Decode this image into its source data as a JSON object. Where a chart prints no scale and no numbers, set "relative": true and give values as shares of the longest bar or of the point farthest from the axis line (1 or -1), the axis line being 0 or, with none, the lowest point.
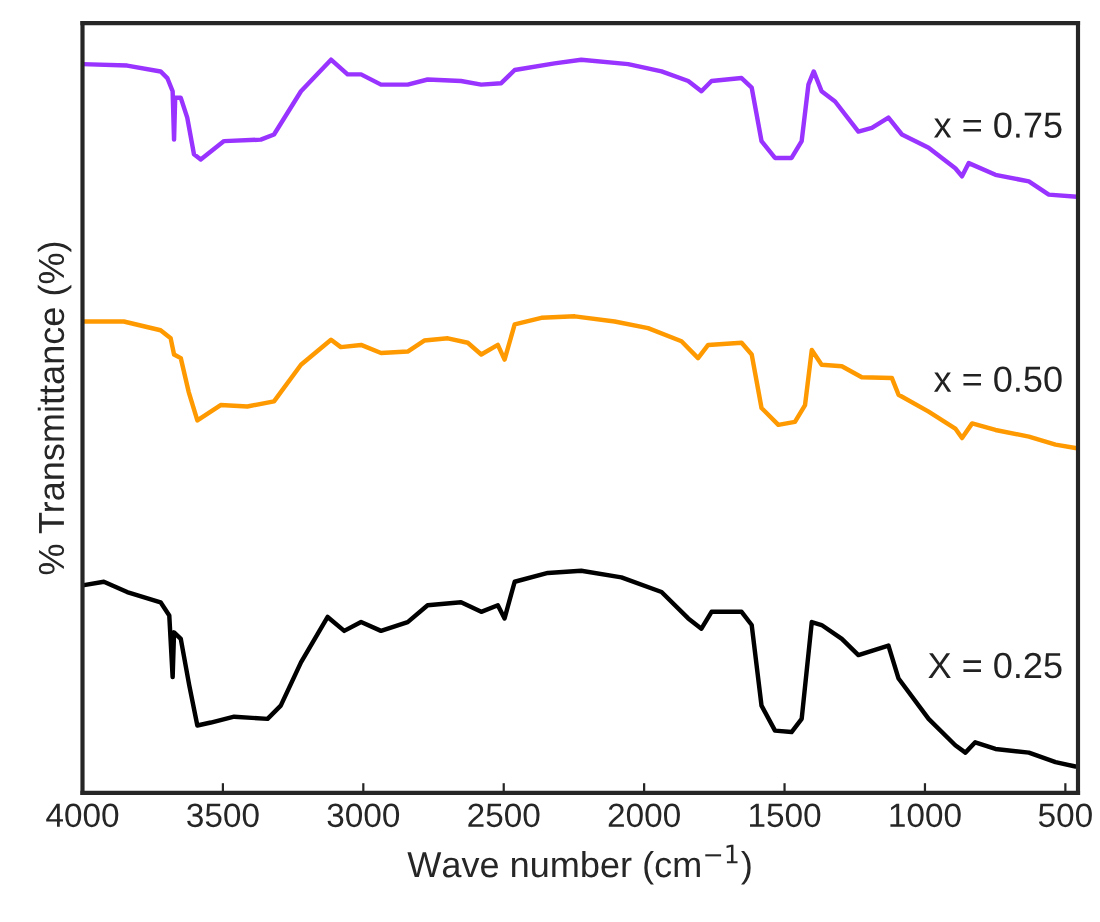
{
  "chart_data": {
    "type": "line",
    "relative": true,
    "xlabel": "Wave number (cm$^{−1}$)",
    "ylabel": "% Transmittance (%)",
    "xlim": [
      4000,
      455
    ],
    "xticks": [
      4000,
      3500,
      3000,
      2500,
      2000,
      1500,
      1000,
      500
    ],
    "grid": false,
    "legend": false,
    "tick_labels": "x",
    "series": [
      {
        "name": "x = 0.75",
        "color": "#9933ff",
        "x": [
          4000,
          3841,
          3722,
          3698,
          3679,
          3674,
          3670,
          3650,
          3627,
          3603,
          3579,
          3496,
          3365,
          3318,
          3222,
          3115,
          3056,
          3008,
          2937,
          2842,
          2771,
          2652,
          2580,
          2509,
          2461,
          2319,
          2224,
          2057,
          1938,
          1843,
          1796,
          1760,
          1653,
          1617,
          1582,
          1534,
          1475,
          1439,
          1415,
          1396,
          1368,
          1320,
          1237,
          1189,
          1130,
          1082,
          987,
          892,
          868,
          844,
          749,
          630,
          559,
          459
        ],
        "values": [
          0.994,
          0.992,
          0.984,
          0.975,
          0.957,
          0.891,
          0.948,
          0.948,
          0.921,
          0.871,
          0.864,
          0.889,
          0.891,
          0.898,
          0.957,
          1,
          0.98,
          0.98,
          0.966,
          0.966,
          0.973,
          0.971,
          0.966,
          0.968,
          0.986,
          0.995,
          1,
          0.994,
          0.984,
          0.971,
          0.957,
          0.971,
          0.975,
          0.962,
          0.889,
          0.866,
          0.866,
          0.889,
          0.966,
          0.984,
          0.957,
          0.943,
          0.902,
          0.907,
          0.921,
          0.898,
          0.88,
          0.852,
          0.841,
          0.859,
          0.843,
          0.834,
          0.816,
          0.813
        ]
      },
      {
        "name": "x = 0.50",
        "color": "#ff9900",
        "x": [
          4000,
          3853,
          3722,
          3686,
          3674,
          3650,
          3622,
          3591,
          3508,
          3413,
          3318,
          3222,
          3115,
          3080,
          3008,
          2937,
          2842,
          2783,
          2699,
          2628,
          2580,
          2521,
          2497,
          2461,
          2366,
          2247,
          2105,
          1986,
          1867,
          1808,
          1772,
          1653,
          1617,
          1582,
          1522,
          1463,
          1427,
          1403,
          1368,
          1296,
          1225,
          1118,
          1094,
          987,
          892,
          868,
          832,
          749,
          630,
          535,
          459
        ],
        "values": [
          0.643,
          0.643,
          0.631,
          0.62,
          0.598,
          0.593,
          0.547,
          0.508,
          0.529,
          0.527,
          0.534,
          0.584,
          0.618,
          0.608,
          0.611,
          0.6,
          0.602,
          0.617,
          0.62,
          0.614,
          0.598,
          0.611,
          0.591,
          0.639,
          0.648,
          0.65,
          0.643,
          0.634,
          0.616,
          0.593,
          0.611,
          0.614,
          0.598,
          0.525,
          0.502,
          0.506,
          0.529,
          0.604,
          0.584,
          0.582,
          0.567,
          0.566,
          0.543,
          0.52,
          0.497,
          0.484,
          0.504,
          0.495,
          0.486,
          0.475,
          0.47
        ]
      },
      {
        "name": "X = 0.25",
        "color": "#000000",
        "x": [
          4000,
          3924,
          3841,
          3722,
          3691,
          3679,
          3674,
          3650,
          3620,
          3591,
          3543,
          3460,
          3341,
          3294,
          3222,
          3127,
          3068,
          3008,
          2937,
          2842,
          2771,
          2652,
          2580,
          2521,
          2497,
          2461,
          2343,
          2224,
          2081,
          1938,
          1843,
          1796,
          1760,
          1653,
          1617,
          1582,
          1534,
          1475,
          1439,
          1403,
          1368,
          1296,
          1237,
          1130,
          1094,
          987,
          892,
          856,
          821,
          749,
          630,
          535,
          464
        ],
        "values": [
          0.283,
          0.288,
          0.274,
          0.26,
          0.242,
          0.158,
          0.219,
          0.21,
          0.147,
          0.092,
          0.096,
          0.104,
          0.101,
          0.119,
          0.178,
          0.24,
          0.221,
          0.233,
          0.221,
          0.233,
          0.256,
          0.26,
          0.247,
          0.256,
          0.238,
          0.288,
          0.3,
          0.303,
          0.294,
          0.274,
          0.238,
          0.224,
          0.247,
          0.247,
          0.229,
          0.119,
          0.085,
          0.083,
          0.101,
          0.233,
          0.229,
          0.21,
          0.188,
          0.201,
          0.156,
          0.101,
          0.065,
          0.055,
          0.069,
          0.06,
          0.055,
          0.042,
          0.036
        ]
      }
    ]
  }
}
